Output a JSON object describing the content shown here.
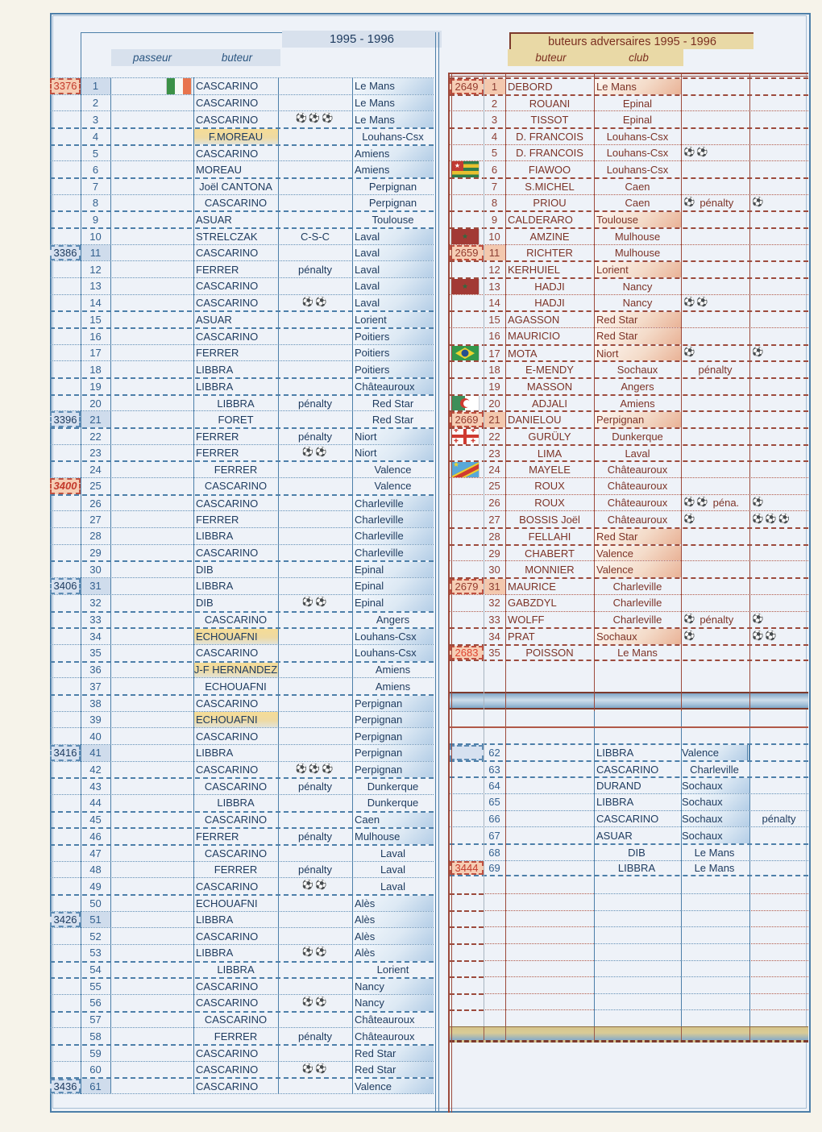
{
  "page": {
    "left_header": {
      "title": "1995 - 1996",
      "col_passeur": "passeur",
      "col_buteur": "buteur"
    },
    "right_header": {
      "title": "buteurs adversaires 1995 - 1996",
      "col_buteur": "buteur",
      "col_club": "club"
    }
  },
  "icons": {
    "soccer_ball": "⚽"
  },
  "colors": {
    "blue_line": "#4d7fa9",
    "blue_dot": "#628fb5",
    "brick_line": "#9c4a3c",
    "brick_dot": "#b05848",
    "gray_line": "#a8b4c0",
    "tan_band": "#e9d9a6",
    "salmon_fill": "#f6cdb4",
    "lightblue_fill": "#d6e1f0",
    "red_number": "#c3392b",
    "blue_text": "#1d3a5e",
    "brick_text": "#7c3327"
  },
  "left_table": {
    "rows": [
      {
        "n": 1,
        "num": "3376",
        "num_style": "red",
        "rownum_hl": true,
        "name": "CASCARINO",
        "align": "l",
        "club": "Le Mans",
        "club_align": "l",
        "club_hl": true,
        "flag": "ireland"
      },
      {
        "n": 2,
        "name": "CASCARINO",
        "align": "l",
        "club": "Le Mans",
        "club_align": "l",
        "club_hl": true
      },
      {
        "n": 3,
        "name": "CASCARINO",
        "align": "l",
        "balls": 3,
        "club": "Le Mans",
        "club_align": "l",
        "club_hl": true
      },
      {
        "n": 4,
        "name": "F.MOREAU",
        "align": "c",
        "name_hl": true,
        "club": "Louhans-Csx",
        "club_align": "c"
      },
      {
        "n": 5,
        "name": "CASCARINO",
        "align": "l",
        "club": "Amiens",
        "club_align": "l",
        "club_hl": true
      },
      {
        "n": 6,
        "name": "MOREAU",
        "align": "l",
        "club": "Amiens",
        "club_align": "l",
        "club_hl": true
      },
      {
        "n": 7,
        "name": "Joël CANTONA",
        "align": "c",
        "club": "Perpignan",
        "club_align": "c"
      },
      {
        "n": 8,
        "name": "CASCARINO",
        "align": "c",
        "club": "Perpignan",
        "club_align": "c"
      },
      {
        "n": 9,
        "name": "ASUAR",
        "align": "l",
        "club": "Toulouse",
        "club_align": "c"
      },
      {
        "n": 10,
        "name": "STRELCZAK",
        "align": "l",
        "note": "C-S-C",
        "club": "Laval",
        "club_align": "l",
        "club_hl": true
      },
      {
        "n": 11,
        "num": "3386",
        "num_style": "blue",
        "rownum_hl": true,
        "name": "CASCARINO",
        "align": "l",
        "club": "Laval",
        "club_align": "l",
        "club_hl": true
      },
      {
        "n": 12,
        "name": "FERRER",
        "align": "l",
        "note": "pénalty",
        "club": "Laval",
        "club_align": "l",
        "club_hl": true
      },
      {
        "n": 13,
        "name": "CASCARINO",
        "align": "l",
        "club": "Laval",
        "club_align": "l",
        "club_hl": true
      },
      {
        "n": 14,
        "name": "CASCARINO",
        "align": "l",
        "balls": 2,
        "club": "Laval",
        "club_align": "l",
        "club_hl": true
      },
      {
        "n": 15,
        "name": "ASUAR",
        "align": "l",
        "club": "Lorient",
        "club_align": "l",
        "club_hl": true
      },
      {
        "n": 16,
        "name": "CASCARINO",
        "align": "l",
        "club": "Poitiers",
        "club_align": "l",
        "club_hl": true
      },
      {
        "n": 17,
        "name": "FERRER",
        "align": "l",
        "club": "Poitiers",
        "club_align": "l",
        "club_hl": true
      },
      {
        "n": 18,
        "name": "LIBBRA",
        "align": "l",
        "club": "Poitiers",
        "club_align": "l",
        "club_hl": true
      },
      {
        "n": 19,
        "name": "LIBBRA",
        "align": "l",
        "club": "Châteauroux",
        "club_align": "l",
        "club_hl": true
      },
      {
        "n": 20,
        "name": "LIBBRA",
        "align": "c",
        "note": "pénalty",
        "club": "Red Star",
        "club_align": "c"
      },
      {
        "n": 21,
        "num": "3396",
        "num_style": "blue",
        "rownum_hl": true,
        "name": "FORET",
        "align": "c",
        "club": "Red Star",
        "club_align": "c"
      },
      {
        "n": 22,
        "name": "FERRER",
        "align": "l",
        "note": "pénalty",
        "club": "Niort",
        "club_align": "l",
        "club_hl": true
      },
      {
        "n": 23,
        "name": "FERRER",
        "align": "l",
        "balls": 2,
        "club": "Niort",
        "club_align": "l",
        "club_hl": true
      },
      {
        "n": 24,
        "name": "FERRER",
        "align": "c",
        "club": "Valence",
        "club_align": "c"
      },
      {
        "n": 25,
        "num": "3400",
        "num_style": "red_italic",
        "name": "CASCARINO",
        "align": "c",
        "club": "Valence",
        "club_align": "c"
      },
      {
        "n": 26,
        "name": "CASCARINO",
        "align": "l",
        "club": "Charleville",
        "club_align": "l",
        "club_hl": true
      },
      {
        "n": 27,
        "name": "FERRER",
        "align": "l",
        "club": "Charleville",
        "club_align": "l",
        "club_hl": true
      },
      {
        "n": 28,
        "name": "LIBBRA",
        "align": "l",
        "club": "Charleville",
        "club_align": "l",
        "club_hl": true
      },
      {
        "n": 29,
        "name": "CASCARINO",
        "align": "l",
        "club": "Charleville",
        "club_align": "l",
        "club_hl": true
      },
      {
        "n": 30,
        "name": "DIB",
        "align": "l",
        "club": "Epinal",
        "club_align": "l",
        "club_hl": true
      },
      {
        "n": 31,
        "num": "3406",
        "num_style": "blue",
        "rownum_hl": true,
        "name": "LIBBRA",
        "align": "l",
        "club": "Epinal",
        "club_align": "l",
        "club_hl": true
      },
      {
        "n": 32,
        "name": "DIB",
        "align": "l",
        "balls": 2,
        "club": "Epinal",
        "club_align": "l",
        "club_hl": true
      },
      {
        "n": 33,
        "name": "CASCARINO",
        "align": "c",
        "club": "Angers",
        "club_align": "c"
      },
      {
        "n": 34,
        "name": "ECHOUAFNI",
        "align": "l",
        "name_hl": true,
        "club": "Louhans-Csx",
        "club_align": "l",
        "club_hl": true
      },
      {
        "n": 35,
        "name": "CASCARINO",
        "align": "l",
        "club": "Louhans-Csx",
        "club_align": "l",
        "club_hl": true
      },
      {
        "n": 36,
        "name": "J-F HERNANDEZ",
        "align": "c",
        "name_hl": true,
        "club": "Amiens",
        "club_align": "c"
      },
      {
        "n": 37,
        "name": "ECHOUAFNI",
        "align": "c",
        "club": "Amiens",
        "club_align": "c"
      },
      {
        "n": 38,
        "name": "CASCARINO",
        "align": "l",
        "club": "Perpignan",
        "club_align": "l",
        "club_hl": true
      },
      {
        "n": 39,
        "name": "ECHOUAFNI",
        "align": "l",
        "name_hl": true,
        "club": "Perpignan",
        "club_align": "l",
        "club_hl": true
      },
      {
        "n": 40,
        "name": "CASCARINO",
        "align": "l",
        "club": "Perpignan",
        "club_align": "l",
        "club_hl": true
      },
      {
        "n": 41,
        "num": "3416",
        "num_style": "blue",
        "rownum_hl": true,
        "name": "LIBBRA",
        "align": "l",
        "club": "Perpignan",
        "club_align": "l",
        "club_hl": true
      },
      {
        "n": 42,
        "name": "CASCARINO",
        "align": "l",
        "balls": 3,
        "club": "Perpignan",
        "club_align": "l",
        "club_hl": true
      },
      {
        "n": 43,
        "name": "CASCARINO",
        "align": "c",
        "note": "pénalty",
        "club": "Dunkerque",
        "club_align": "c"
      },
      {
        "n": 44,
        "name": "LIBBRA",
        "align": "c",
        "club": "Dunkerque",
        "club_align": "c"
      },
      {
        "n": 45,
        "name": "CASCARINO",
        "align": "c",
        "club": "Caen",
        "club_align": "l",
        "club_hl": true
      },
      {
        "n": 46,
        "name": "FERRER",
        "align": "l",
        "note": "pénalty",
        "club": "Mulhouse",
        "club_align": "l",
        "club_hl": true
      },
      {
        "n": 47,
        "name": "CASCARINO",
        "align": "c",
        "club": "Laval",
        "club_align": "c"
      },
      {
        "n": 48,
        "name": "FERRER",
        "align": "c",
        "note": "pénalty",
        "club": "Laval",
        "club_align": "c"
      },
      {
        "n": 49,
        "name": "CASCARINO",
        "align": "l",
        "balls": 2,
        "club": "Laval",
        "club_align": "c"
      },
      {
        "n": 50,
        "name": "ECHOUAFNI",
        "align": "l",
        "club": "Alès",
        "club_align": "l",
        "club_hl": true
      },
      {
        "n": 51,
        "num": "3426",
        "num_style": "blue",
        "rownum_hl": true,
        "name": "LIBBRA",
        "align": "l",
        "club": "Alès",
        "club_align": "l",
        "club_hl": true
      },
      {
        "n": 52,
        "name": "CASCARINO",
        "align": "l",
        "club": "Alès",
        "club_align": "l",
        "club_hl": true
      },
      {
        "n": 53,
        "name": "LIBBRA",
        "align": "l",
        "balls": 2,
        "club": "Alès",
        "club_align": "l",
        "club_hl": true
      },
      {
        "n": 54,
        "name": "LIBBRA",
        "align": "c",
        "club": "Lorient",
        "club_align": "c"
      },
      {
        "n": 55,
        "name": "CASCARINO",
        "align": "l",
        "club": "Nancy",
        "club_align": "l",
        "club_hl": true
      },
      {
        "n": 56,
        "name": "CASCARINO",
        "align": "l",
        "balls": 2,
        "club": "Nancy",
        "club_align": "l",
        "club_hl": true
      },
      {
        "n": 57,
        "name": "CASCARINO",
        "align": "c",
        "club": "Châteauroux",
        "club_align": "l"
      },
      {
        "n": 58,
        "name": "FERRER",
        "align": "c",
        "note": "pénalty",
        "club": "Châteauroux",
        "club_align": "l"
      },
      {
        "n": 59,
        "name": "CASCARINO",
        "align": "l",
        "club": "Red Star",
        "club_align": "l",
        "club_hl": true
      },
      {
        "n": 60,
        "name": "CASCARINO",
        "align": "l",
        "balls": 2,
        "club": "Red Star",
        "club_align": "l",
        "club_hl": true
      },
      {
        "n": 61,
        "num": "3436",
        "num_style": "blue",
        "rownum_hl": true,
        "name": "CASCARINO",
        "align": "l",
        "club": "Valence",
        "club_align": "l",
        "club_hl": true
      }
    ]
  },
  "right_table": {
    "rows": [
      {
        "n": 1,
        "num": "2649",
        "rownum_hl": true,
        "name": "DEBORD",
        "align": "l",
        "club": "Le Mans",
        "club_align": "l",
        "club_hl": true
      },
      {
        "n": 2,
        "name": "ROUANI",
        "align": "c",
        "club": "Epinal",
        "club_align": "c"
      },
      {
        "n": 3,
        "name": "TISSOT",
        "align": "c",
        "club": "Epinal",
        "club_align": "c"
      },
      {
        "n": 4,
        "name": "D. FRANCOIS",
        "align": "c",
        "club": "Louhans-Csx",
        "club_align": "c"
      },
      {
        "n": 5,
        "name": "D. FRANCOIS",
        "align": "c",
        "club": "Louhans-Csx",
        "club_align": "c",
        "balls1": 2
      },
      {
        "n": 6,
        "flag": "togo",
        "name": "FIAWOO",
        "align": "c",
        "club": "Louhans-Csx",
        "club_align": "c"
      },
      {
        "n": 7,
        "name": "S.MICHEL",
        "align": "c",
        "club": "Caen",
        "club_align": "c"
      },
      {
        "n": 8,
        "name": "PRIOU",
        "align": "c",
        "club": "Caen",
        "club_align": "c",
        "balls1": 1,
        "note1": "pénalty",
        "balls2": 1
      },
      {
        "n": 9,
        "name": "CALDERARO",
        "align": "l",
        "club": "Toulouse",
        "club_align": "l",
        "club_hl": true
      },
      {
        "n": 10,
        "flag": "morocco",
        "name": "AMZINE",
        "align": "c",
        "club": "Mulhouse",
        "club_align": "c"
      },
      {
        "n": 11,
        "num": "2659",
        "rownum_hl": true,
        "name": "RICHTER",
        "align": "c",
        "club": "Mulhouse",
        "club_align": "c"
      },
      {
        "n": 12,
        "name": "KERHUIEL",
        "align": "l",
        "club": "Lorient",
        "club_align": "l",
        "club_hl": true
      },
      {
        "n": 13,
        "flag": "morocco",
        "name": "HADJI",
        "align": "c",
        "club": "Nancy",
        "club_align": "c"
      },
      {
        "n": 14,
        "name": "HADJI",
        "align": "c",
        "club": "Nancy",
        "club_align": "c",
        "balls1": 2
      },
      {
        "n": 15,
        "name": "AGASSON",
        "align": "l",
        "club": "Red Star",
        "club_align": "l",
        "club_hl": true
      },
      {
        "n": 16,
        "name": "MAURICIO",
        "align": "l",
        "club": "Red Star",
        "club_align": "l",
        "club_hl": true
      },
      {
        "n": 17,
        "flag": "brazil",
        "name": "MOTA",
        "align": "l",
        "club": "Niort",
        "club_align": "l",
        "club_hl": true,
        "balls1": 1,
        "balls2": 1
      },
      {
        "n": 18,
        "name": "E-MENDY",
        "align": "c",
        "club": "Sochaux",
        "club_align": "c",
        "note1": "pénalty",
        "note1_center": true
      },
      {
        "n": 19,
        "name": "MASSON",
        "align": "c",
        "club": "Angers",
        "club_align": "c"
      },
      {
        "n": 20,
        "flag": "algeria",
        "name": "ADJALI",
        "align": "c",
        "club": "Amiens",
        "club_align": "c"
      },
      {
        "n": 21,
        "num": "2669",
        "rownum_hl": true,
        "name": "DANIELOU",
        "align": "l",
        "club": "Perpignan",
        "club_align": "l",
        "club_hl": true
      },
      {
        "n": 22,
        "flag": "georgia",
        "name": "GURÜLY",
        "align": "c",
        "club": "Dunkerque",
        "club_align": "c"
      },
      {
        "n": 23,
        "name": "LIMA",
        "align": "c",
        "club": "Laval",
        "club_align": "c"
      },
      {
        "n": 24,
        "flag": "dr_congo",
        "name": "MAYELE",
        "align": "c",
        "club": "Châteauroux",
        "club_align": "c"
      },
      {
        "n": 25,
        "name": "ROUX",
        "align": "c",
        "club": "Châteauroux",
        "club_align": "c"
      },
      {
        "n": 26,
        "name": "ROUX",
        "align": "c",
        "club": "Châteauroux",
        "club_align": "c",
        "balls1": 2,
        "note1": "péna.",
        "balls2": 1
      },
      {
        "n": 27,
        "name": "BOSSIS Joël",
        "align": "c",
        "club": "Châteauroux",
        "club_align": "c",
        "balls1": 1,
        "balls2": 3
      },
      {
        "n": 28,
        "name": "FELLAHI",
        "align": "c",
        "club": "Red Star",
        "club_align": "l",
        "club_hl": true
      },
      {
        "n": 29,
        "name": "CHABERT",
        "align": "c",
        "club": "Valence",
        "club_align": "l",
        "club_hl": true
      },
      {
        "n": 30,
        "name": "MONNIER",
        "align": "c",
        "club": "Valence",
        "club_align": "l",
        "club_hl": true
      },
      {
        "n": 31,
        "num": "2679",
        "rownum_hl": true,
        "name": "MAURICE",
        "align": "l",
        "club": "Charleville",
        "club_align": "c"
      },
      {
        "n": 32,
        "name": "GABZDYL",
        "align": "l",
        "club": "Charleville",
        "club_align": "c"
      },
      {
        "n": 33,
        "name": "WOLFF",
        "align": "l",
        "club": "Charleville",
        "club_align": "c",
        "balls1": 1,
        "note1": "pénalty",
        "balls2": 1
      },
      {
        "n": 34,
        "name": "PRAT",
        "align": "l",
        "club": "Sochaux",
        "club_align": "l",
        "club_hl": true,
        "balls1": 1,
        "balls2": 2
      },
      {
        "n": 35,
        "num": "2683",
        "num_style": "bright",
        "name": "POISSON",
        "align": "c",
        "club": "Le Mans",
        "club_align": "c"
      }
    ]
  },
  "bottom_table": {
    "rows": [
      {
        "n": 62,
        "bignum_hl": true,
        "name": "LIBBRA",
        "align": "l",
        "club": "Valence",
        "club_align": "l",
        "club_hl": true,
        "club_dbl": true
      },
      {
        "n": 63,
        "name": "CASCARINO",
        "align": "l",
        "club": "Charleville",
        "club_align": "c"
      },
      {
        "n": 64,
        "name": "DURAND",
        "align": "l",
        "club": "Sochaux",
        "club_align": "l",
        "club_hl": true
      },
      {
        "n": 65,
        "name": "LIBBRA",
        "align": "l",
        "club": "Sochaux",
        "club_align": "l",
        "club_hl": true
      },
      {
        "n": 66,
        "name": "CASCARINO",
        "align": "l",
        "club": "Sochaux",
        "club_align": "l",
        "club_hl": true,
        "note2": "pénalty"
      },
      {
        "n": 67,
        "name": "ASUAR",
        "align": "l",
        "club": "Sochaux",
        "club_align": "l",
        "club_hl": true
      },
      {
        "n": 68,
        "name": "DIB",
        "align": "c",
        "club": "Le Mans",
        "club_align": "c"
      },
      {
        "n": 69,
        "num": "3444",
        "num_style": "red",
        "name": "LIBBRA",
        "align": "c",
        "club": "Le Mans",
        "club_align": "c"
      }
    ]
  }
}
